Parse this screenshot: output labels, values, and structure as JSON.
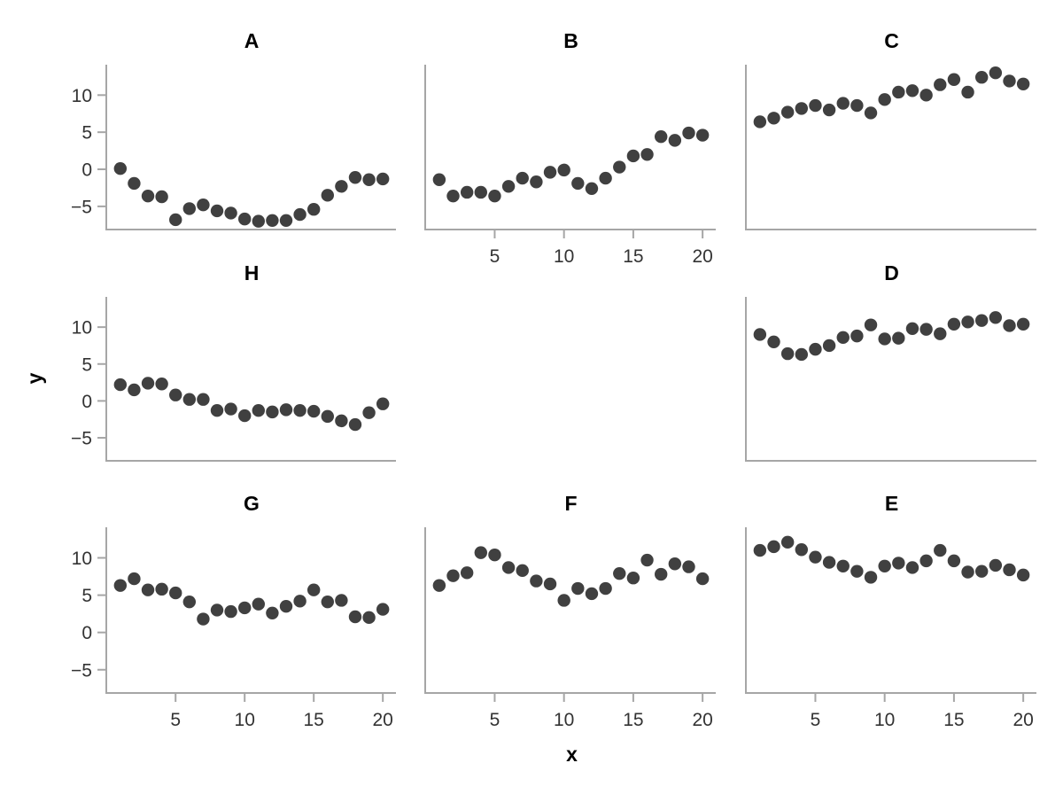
{
  "chart_data": {
    "type": "scatter",
    "xlabel": "x",
    "ylabel": "y",
    "x": [
      1,
      2,
      3,
      4,
      5,
      6,
      7,
      8,
      9,
      10,
      11,
      12,
      13,
      14,
      15,
      16,
      17,
      18,
      19,
      20
    ],
    "x_ticks": [
      5,
      10,
      15,
      20
    ],
    "y_ticks": [
      10,
      5,
      0,
      -5
    ],
    "xlim": [
      0.05,
      20.95
    ],
    "ylim": [
      -8,
      14.1
    ],
    "grid": "off",
    "legend": "none",
    "point_color": "#404040",
    "axis_color": "#a6a6a6",
    "text_color": "#333333",
    "title_color": "#000000",
    "facets": [
      {
        "label": "A",
        "row": 0,
        "col": 0,
        "show_y_labels": true,
        "show_x_labels": false,
        "y": [
          0.1,
          -1.9,
          -3.6,
          -3.7,
          -6.8,
          -5.3,
          -4.8,
          -5.6,
          -5.9,
          -6.7,
          -7.0,
          -6.9,
          -6.9,
          -6.1,
          -5.4,
          -3.5,
          -2.3,
          -1.1,
          -1.4,
          -1.3
        ]
      },
      {
        "label": "B",
        "row": 0,
        "col": 1,
        "show_y_labels": false,
        "show_x_labels": true,
        "y": [
          -1.4,
          -3.6,
          -3.1,
          -3.1,
          -3.6,
          -2.3,
          -1.2,
          -1.7,
          -0.4,
          -0.1,
          -1.9,
          -2.6,
          -1.2,
          0.3,
          1.8,
          2.0,
          4.4,
          3.9,
          4.9,
          4.6
        ]
      },
      {
        "label": "C",
        "row": 0,
        "col": 2,
        "show_y_labels": false,
        "show_x_labels": false,
        "y": [
          6.4,
          6.9,
          7.7,
          8.2,
          8.6,
          8.0,
          8.9,
          8.6,
          7.6,
          9.4,
          10.4,
          10.6,
          10.0,
          11.4,
          12.1,
          10.4,
          12.4,
          13.0,
          11.9,
          11.5
        ]
      },
      {
        "label": "H",
        "row": 1,
        "col": 0,
        "show_y_labels": true,
        "show_x_labels": false,
        "y": [
          2.2,
          1.5,
          2.4,
          2.3,
          0.8,
          0.2,
          0.2,
          -1.3,
          -1.1,
          -2.0,
          -1.3,
          -1.5,
          -1.2,
          -1.3,
          -1.4,
          -2.1,
          -2.7,
          -3.2,
          -1.6,
          -0.4
        ]
      },
      {
        "label": "D",
        "row": 1,
        "col": 2,
        "show_y_labels": false,
        "show_x_labels": false,
        "y": [
          9.0,
          8.0,
          6.4,
          6.3,
          7.0,
          7.5,
          8.6,
          8.8,
          10.3,
          8.4,
          8.5,
          9.8,
          9.7,
          9.1,
          10.4,
          10.7,
          10.9,
          11.3,
          10.2,
          10.4
        ]
      },
      {
        "label": "G",
        "row": 2,
        "col": 0,
        "show_y_labels": true,
        "show_x_labels": true,
        "y": [
          6.3,
          7.2,
          5.7,
          5.8,
          5.3,
          4.1,
          1.8,
          3.0,
          2.8,
          3.3,
          3.8,
          2.6,
          3.5,
          4.2,
          5.7,
          4.1,
          4.3,
          2.1,
          2.0,
          3.1
        ]
      },
      {
        "label": "F",
        "row": 2,
        "col": 1,
        "show_y_labels": false,
        "show_x_labels": true,
        "y": [
          6.3,
          7.6,
          8.0,
          10.7,
          10.4,
          8.7,
          8.3,
          6.9,
          6.5,
          4.3,
          5.9,
          5.2,
          5.9,
          7.9,
          7.3,
          9.7,
          7.8,
          9.2,
          8.8,
          7.2
        ]
      },
      {
        "label": "E",
        "row": 2,
        "col": 2,
        "show_y_labels": false,
        "show_x_labels": true,
        "y": [
          11.0,
          11.5,
          12.1,
          11.1,
          10.1,
          9.4,
          8.9,
          8.2,
          7.4,
          8.9,
          9.3,
          8.7,
          9.6,
          11.0,
          9.6,
          8.1,
          8.2,
          9.0,
          8.4,
          7.7
        ]
      }
    ],
    "empty_cells": [
      {
        "row": 1,
        "col": 1
      }
    ]
  }
}
